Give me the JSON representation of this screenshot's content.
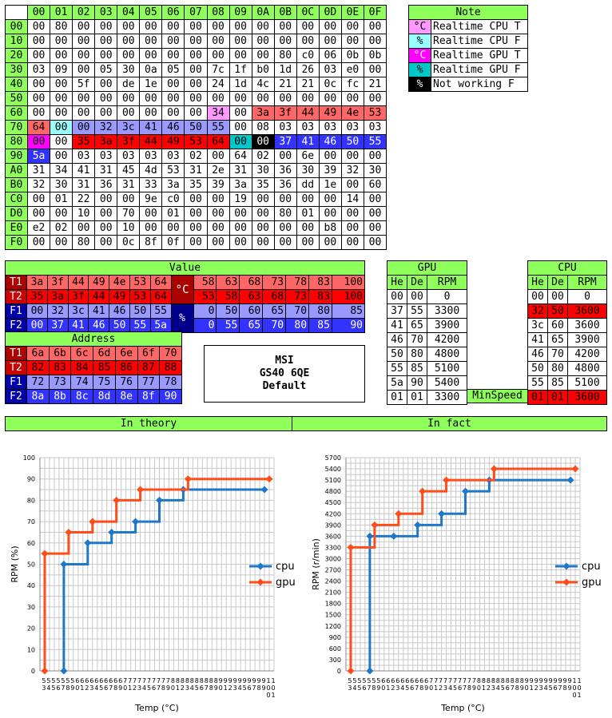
{
  "colors": {
    "header_green": "#8fff5c",
    "cpu_temp": "#ff99ff",
    "cpu_fan": "#99ffff",
    "gpu_temp": "#ff00ff",
    "gpu_fan": "#00c8c8",
    "not_working": "#000000",
    "t1_red": "#ff6666",
    "t2_red": "#ff0000",
    "t1_label": "#aa0000",
    "t2_label": "#cc0000",
    "f1_blue": "#9999ff",
    "f2_blue": "#3333ff",
    "f_label": "#0000aa",
    "degc_cell": "#aa0000",
    "pct_cell": "#00008b",
    "cpu_line": "#1f77c8",
    "gpu_line": "#ff4c1a"
  },
  "memory": {
    "col_headers": [
      "00",
      "01",
      "02",
      "03",
      "04",
      "05",
      "06",
      "07",
      "08",
      "09",
      "0A",
      "0B",
      "0C",
      "0D",
      "0E",
      "0F"
    ],
    "rows": [
      {
        "label": "00",
        "cells": [
          "00",
          "80",
          "00",
          "00",
          "00",
          "00",
          "00",
          "00",
          "00",
          "00",
          "00",
          "00",
          "00",
          "00",
          "00",
          "00"
        ]
      },
      {
        "label": "10",
        "cells": [
          "00",
          "00",
          "00",
          "00",
          "00",
          "00",
          "00",
          "00",
          "00",
          "00",
          "00",
          "00",
          "00",
          "00",
          "00",
          "00"
        ]
      },
      {
        "label": "20",
        "cells": [
          "00",
          "00",
          "00",
          "00",
          "00",
          "00",
          "00",
          "00",
          "00",
          "00",
          "00",
          "80",
          "c0",
          "06",
          "0b",
          "0b"
        ]
      },
      {
        "label": "30",
        "cells": [
          "03",
          "09",
          "00",
          "05",
          "30",
          "0a",
          "05",
          "00",
          "7c",
          "1f",
          "b0",
          "1d",
          "26",
          "03",
          "e0",
          "00"
        ]
      },
      {
        "label": "40",
        "cells": [
          "00",
          "00",
          "5f",
          "00",
          "de",
          "1e",
          "00",
          "00",
          "24",
          "1d",
          "4c",
          "21",
          "21",
          "0c",
          "fc",
          "21"
        ]
      },
      {
        "label": "50",
        "cells": [
          "00",
          "00",
          "00",
          "00",
          "00",
          "00",
          "00",
          "00",
          "00",
          "00",
          "00",
          "00",
          "00",
          "00",
          "00",
          "00"
        ]
      },
      {
        "label": "60",
        "cells": [
          "00",
          "00",
          "00",
          "00",
          "00",
          "00",
          "00",
          "00",
          "34",
          "00",
          "3a",
          "3f",
          "44",
          "49",
          "4e",
          "53"
        ]
      },
      {
        "label": "70",
        "cells": [
          "64",
          "00",
          "00",
          "32",
          "3c",
          "41",
          "46",
          "50",
          "55",
          "00",
          "08",
          "03",
          "03",
          "03",
          "03",
          "03"
        ]
      },
      {
        "label": "80",
        "cells": [
          "00",
          "00",
          "35",
          "3a",
          "3f",
          "44",
          "49",
          "53",
          "64",
          "00",
          "00",
          "37",
          "41",
          "46",
          "50",
          "55"
        ]
      },
      {
        "label": "90",
        "cells": [
          "5a",
          "00",
          "03",
          "03",
          "03",
          "03",
          "03",
          "02",
          "00",
          "64",
          "02",
          "00",
          "6e",
          "00",
          "00",
          "00"
        ]
      },
      {
        "label": "A0",
        "cells": [
          "31",
          "34",
          "41",
          "31",
          "45",
          "4d",
          "53",
          "31",
          "2e",
          "31",
          "30",
          "36",
          "30",
          "39",
          "32",
          "30"
        ]
      },
      {
        "label": "B0",
        "cells": [
          "32",
          "30",
          "31",
          "36",
          "31",
          "33",
          "3a",
          "35",
          "39",
          "3a",
          "35",
          "36",
          "dd",
          "1e",
          "00",
          "60"
        ]
      },
      {
        "label": "C0",
        "cells": [
          "00",
          "01",
          "22",
          "00",
          "00",
          "9e",
          "c0",
          "00",
          "00",
          "19",
          "00",
          "00",
          "00",
          "00",
          "14",
          "00"
        ]
      },
      {
        "label": "D0",
        "cells": [
          "00",
          "00",
          "10",
          "00",
          "70",
          "00",
          "01",
          "00",
          "00",
          "00",
          "00",
          "80",
          "01",
          "00",
          "00",
          "00"
        ]
      },
      {
        "label": "E0",
        "cells": [
          "e2",
          "02",
          "00",
          "00",
          "10",
          "00",
          "00",
          "00",
          "00",
          "00",
          "00",
          "00",
          "00",
          "b8",
          "00",
          "00"
        ]
      },
      {
        "label": "F0",
        "cells": [
          "00",
          "00",
          "80",
          "00",
          "0c",
          "8f",
          "0f",
          "00",
          "00",
          "00",
          "00",
          "00",
          "00",
          "00",
          "00",
          "00"
        ]
      }
    ]
  },
  "note": {
    "title": "Note",
    "items": [
      {
        "sym": "°C",
        "text": "Realtime CPU T"
      },
      {
        "sym": "%",
        "text": "Realtime CPU F"
      },
      {
        "sym": "°C",
        "text": "Realtime GPU T"
      },
      {
        "sym": "%",
        "text": "Realtime GPU F"
      },
      {
        "sym": "%",
        "text": "Not working  F"
      }
    ]
  },
  "value": {
    "title": "Value",
    "rows": [
      {
        "label": "T1",
        "left": [
          "3a",
          "3f",
          "44",
          "49",
          "4e",
          "53",
          "64"
        ],
        "right": [
          "58",
          "63",
          "68",
          "73",
          "78",
          "83",
          "100"
        ]
      },
      {
        "label": "T2",
        "left": [
          "35",
          "3a",
          "3f",
          "44",
          "49",
          "53",
          "64"
        ],
        "right": [
          "53",
          "58",
          "63",
          "68",
          "73",
          "83",
          "100"
        ]
      },
      {
        "label": "F1",
        "left": [
          "00",
          "32",
          "3c",
          "41",
          "46",
          "50",
          "55"
        ],
        "right": [
          "0",
          "50",
          "60",
          "65",
          "70",
          "80",
          "85"
        ]
      },
      {
        "label": "F2",
        "left": [
          "00",
          "37",
          "41",
          "46",
          "50",
          "55",
          "5a"
        ],
        "right": [
          "0",
          "55",
          "65",
          "70",
          "80",
          "85",
          "90"
        ]
      }
    ],
    "degc": "°C",
    "pct": "%"
  },
  "address": {
    "title": "Address",
    "rows": [
      {
        "label": "T1",
        "cells": [
          "6a",
          "6b",
          "6c",
          "6d",
          "6e",
          "6f",
          "70"
        ]
      },
      {
        "label": "T2",
        "cells": [
          "82",
          "83",
          "84",
          "85",
          "86",
          "87",
          "88"
        ]
      },
      {
        "label": "F1",
        "cells": [
          "72",
          "73",
          "74",
          "75",
          "76",
          "77",
          "78"
        ]
      },
      {
        "label": "F2",
        "cells": [
          "8a",
          "8b",
          "8c",
          "8d",
          "8e",
          "8f",
          "90"
        ]
      }
    ]
  },
  "model": {
    "line1": "MSI",
    "line2": "GS40 6QE",
    "line3": "Default"
  },
  "gpu_table": {
    "title": "GPU",
    "headers": [
      "He",
      "De",
      "RPM"
    ],
    "rows": [
      [
        "00",
        "00",
        "0"
      ],
      [
        "37",
        "55",
        "3300"
      ],
      [
        "41",
        "65",
        "3900"
      ],
      [
        "46",
        "70",
        "4200"
      ],
      [
        "50",
        "80",
        "4800"
      ],
      [
        "55",
        "85",
        "5100"
      ],
      [
        "5a",
        "90",
        "5400"
      ],
      [
        "01",
        "01",
        "3300"
      ]
    ]
  },
  "minspeed_label": "MinSpeed",
  "cpu_table": {
    "title": "CPU",
    "headers": [
      "He",
      "De",
      "RPM"
    ],
    "rows": [
      [
        "00",
        "00",
        "0"
      ],
      [
        "32",
        "50",
        "3600"
      ],
      [
        "3c",
        "60",
        "3600"
      ],
      [
        "41",
        "65",
        "3900"
      ],
      [
        "46",
        "70",
        "4200"
      ],
      [
        "50",
        "80",
        "4800"
      ],
      [
        "55",
        "85",
        "5100"
      ],
      [
        "01",
        "01",
        "3600"
      ]
    ]
  },
  "sections": {
    "theory": "In theory",
    "fact": "In fact"
  },
  "chart_data": [
    {
      "type": "line",
      "step": true,
      "xlabel": "Temp (°C)",
      "ylabel": "RPM (%)",
      "xlim": [
        52,
        101
      ],
      "ylim": [
        0,
        100
      ],
      "yticks": [
        0,
        10,
        20,
        30,
        40,
        50,
        60,
        70,
        80,
        90,
        100
      ],
      "grid": true,
      "legend": "right",
      "series": [
        {
          "name": "cpu",
          "color": "#1f77c8",
          "points": [
            [
              57,
              0
            ],
            [
              57,
              50
            ],
            [
              62,
              50
            ],
            [
              62,
              60
            ],
            [
              67,
              60
            ],
            [
              67,
              65
            ],
            [
              72,
              65
            ],
            [
              72,
              70
            ],
            [
              77,
              70
            ],
            [
              77,
              80
            ],
            [
              82,
              80
            ],
            [
              82,
              85
            ],
            [
              99,
              85
            ]
          ]
        },
        {
          "name": "gpu",
          "color": "#ff4c1a",
          "points": [
            [
              53,
              0
            ],
            [
              53,
              55
            ],
            [
              58,
              55
            ],
            [
              58,
              65
            ],
            [
              63,
              65
            ],
            [
              63,
              70
            ],
            [
              68,
              70
            ],
            [
              68,
              80
            ],
            [
              73,
              80
            ],
            [
              73,
              85
            ],
            [
              83,
              85
            ],
            [
              83,
              90
            ],
            [
              100,
              90
            ]
          ]
        }
      ]
    },
    {
      "type": "line",
      "step": true,
      "xlabel": "Temp (°C)",
      "ylabel": "RPM (r/min)",
      "xlim": [
        52,
        101
      ],
      "ylim": [
        0,
        5700
      ],
      "yticks": [
        0,
        300,
        600,
        900,
        1200,
        1500,
        1800,
        2100,
        2400,
        2700,
        3000,
        3300,
        3600,
        3900,
        4200,
        4500,
        4800,
        5100,
        5400,
        5700
      ],
      "grid": true,
      "legend": "right",
      "series": [
        {
          "name": "cpu",
          "color": "#1f77c8",
          "points": [
            [
              57,
              0
            ],
            [
              57,
              3600
            ],
            [
              62,
              3600
            ],
            [
              62,
              3600
            ],
            [
              67,
              3600
            ],
            [
              67,
              3900
            ],
            [
              72,
              3900
            ],
            [
              72,
              4200
            ],
            [
              77,
              4200
            ],
            [
              77,
              4800
            ],
            [
              82,
              4800
            ],
            [
              82,
              5100
            ],
            [
              99,
              5100
            ]
          ]
        },
        {
          "name": "gpu",
          "color": "#ff4c1a",
          "points": [
            [
              53,
              0
            ],
            [
              53,
              3300
            ],
            [
              58,
              3300
            ],
            [
              58,
              3900
            ],
            [
              63,
              3900
            ],
            [
              63,
              4200
            ],
            [
              68,
              4200
            ],
            [
              68,
              4800
            ],
            [
              73,
              4800
            ],
            [
              73,
              5100
            ],
            [
              83,
              5100
            ],
            [
              83,
              5400
            ],
            [
              100,
              5400
            ]
          ]
        }
      ]
    }
  ]
}
